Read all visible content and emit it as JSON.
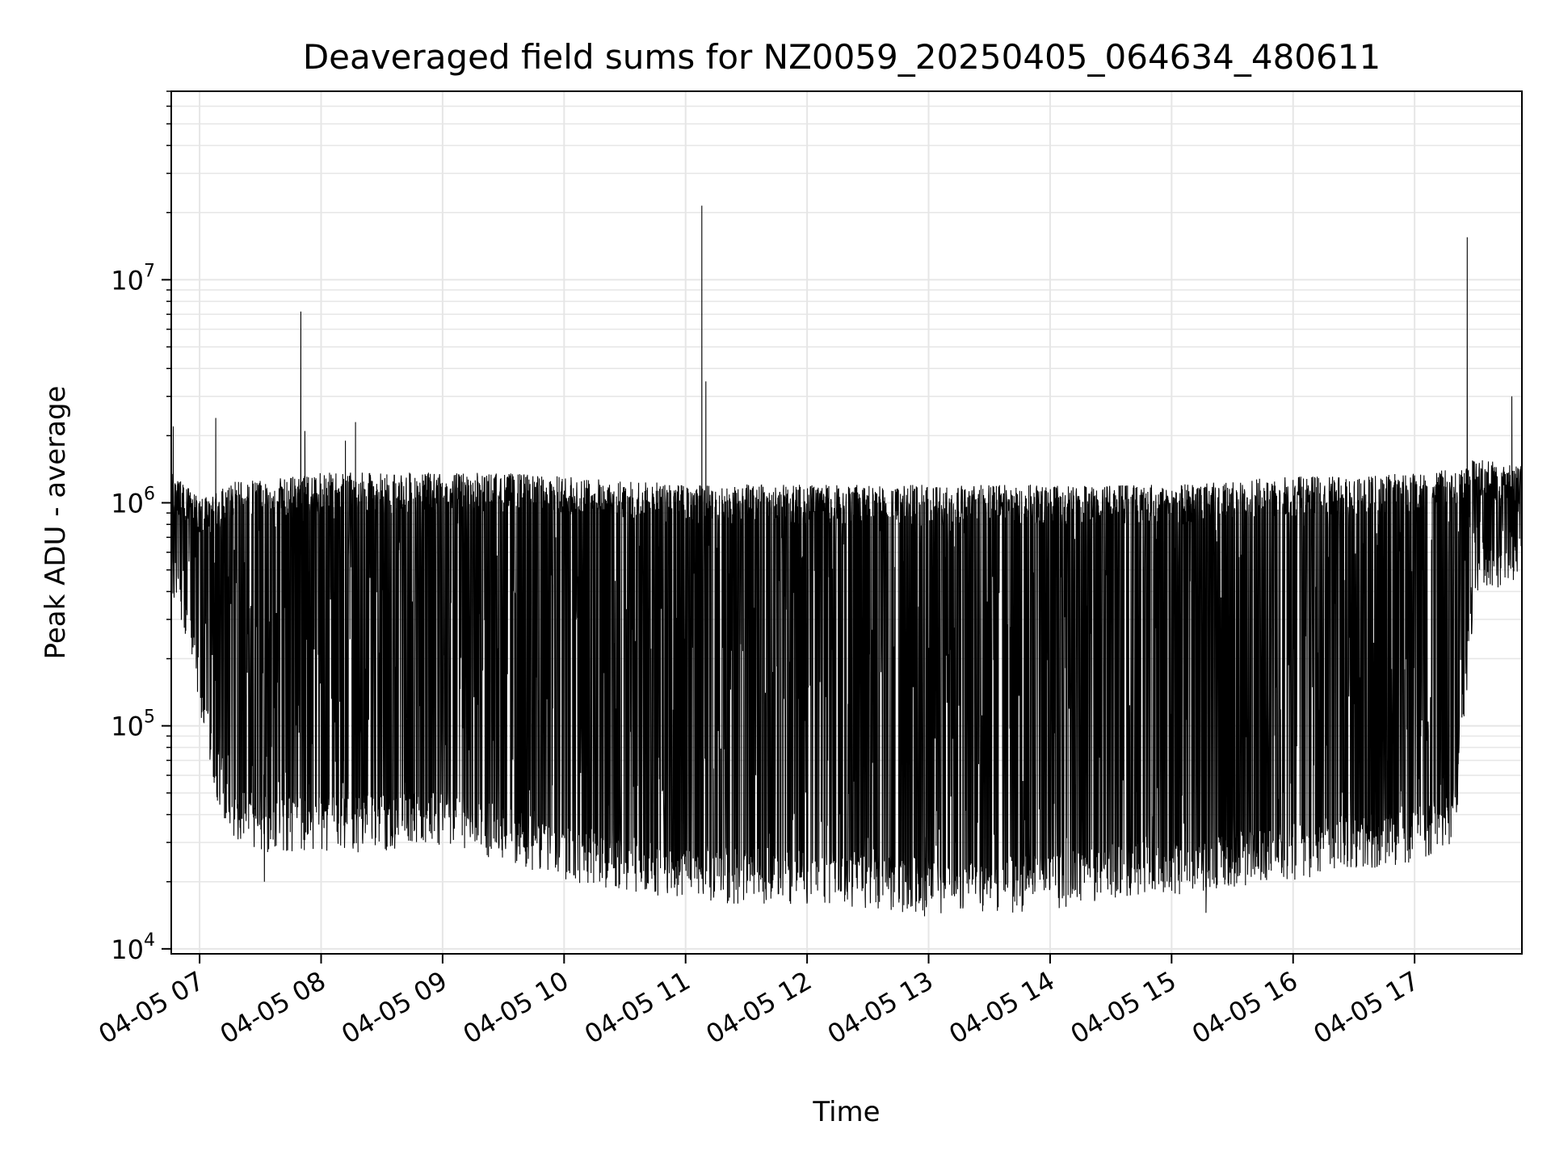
{
  "chart_data": {
    "type": "line",
    "title": "Deaveraged field sums for NZ0059_20250405_064634_480611",
    "xlabel": "Time",
    "ylabel": "Peak ADU - average",
    "yscale": "log",
    "ylim": [
      9500,
      70000000
    ],
    "xlim": [
      "2025-04-05 06:46",
      "2025-04-05 17:53"
    ],
    "grid": true,
    "x_ticks": [
      {
        "t": "2025-04-05 07:00",
        "label": "04-05 07"
      },
      {
        "t": "2025-04-05 08:00",
        "label": "04-05 08"
      },
      {
        "t": "2025-04-05 09:00",
        "label": "04-05 09"
      },
      {
        "t": "2025-04-05 10:00",
        "label": "04-05 10"
      },
      {
        "t": "2025-04-05 11:00",
        "label": "04-05 11"
      },
      {
        "t": "2025-04-05 12:00",
        "label": "04-05 12"
      },
      {
        "t": "2025-04-05 13:00",
        "label": "04-05 13"
      },
      {
        "t": "2025-04-05 14:00",
        "label": "04-05 14"
      },
      {
        "t": "2025-04-05 15:00",
        "label": "04-05 15"
      },
      {
        "t": "2025-04-05 16:00",
        "label": "04-05 16"
      },
      {
        "t": "2025-04-05 17:00",
        "label": "04-05 17"
      }
    ],
    "y_ticks": [
      {
        "value": 10000,
        "base": "10",
        "exp": "4"
      },
      {
        "value": 100000,
        "base": "10",
        "exp": "5"
      },
      {
        "value": 1000000,
        "base": "10",
        "exp": "6"
      },
      {
        "value": 10000000,
        "base": "10",
        "exp": "7"
      }
    ],
    "line_color": "#000000",
    "grid_color": "#e6e6e6",
    "envelope": {
      "description_times": [
        "2025-04-05 06:46",
        "2025-04-05 06:55",
        "2025-04-05 07:05",
        "2025-04-05 07:15",
        "2025-04-05 07:30",
        "2025-04-05 08:00",
        "2025-04-05 08:30",
        "2025-04-05 09:00",
        "2025-04-05 09:30",
        "2025-04-05 10:00",
        "2025-04-05 10:30",
        "2025-04-05 11:00",
        "2025-04-05 11:30",
        "2025-04-05 12:00",
        "2025-04-05 12:30",
        "2025-04-05 13:00",
        "2025-04-05 13:30",
        "2025-04-05 14:00",
        "2025-04-05 14:30",
        "2025-04-05 15:00",
        "2025-04-05 15:30",
        "2025-04-05 16:00",
        "2025-04-05 16:30",
        "2025-04-05 17:00",
        "2025-04-05 17:20",
        "2025-04-05 17:30",
        "2025-04-05 17:53"
      ],
      "upper": [
        1300000,
        1100000,
        1000000,
        1200000,
        1200000,
        1300000,
        1300000,
        1300000,
        1300000,
        1250000,
        1200000,
        1150000,
        1150000,
        1150000,
        1150000,
        1150000,
        1150000,
        1150000,
        1150000,
        1150000,
        1200000,
        1250000,
        1250000,
        1300000,
        1350000,
        1500000,
        1400000
      ],
      "lower": [
        500000,
        250000,
        80000,
        40000,
        36000,
        36000,
        36000,
        38000,
        33000,
        27000,
        24000,
        22000,
        21000,
        21000,
        20000,
        19000,
        19000,
        20000,
        22000,
        23000,
        25000,
        27000,
        30000,
        32000,
        40000,
        500000,
        600000
      ]
    },
    "spikes": [
      {
        "t": "2025-04-05 06:47",
        "value": 2200000
      },
      {
        "t": "2025-04-05 07:08",
        "value": 2400000
      },
      {
        "t": "2025-04-05 07:50",
        "value": 7200000
      },
      {
        "t": "2025-04-05 07:52",
        "value": 2100000
      },
      {
        "t": "2025-04-05 08:12",
        "value": 1900000
      },
      {
        "t": "2025-04-05 08:17",
        "value": 2300000
      },
      {
        "t": "2025-04-05 11:08",
        "value": 21500000
      },
      {
        "t": "2025-04-05 11:10",
        "value": 3500000
      },
      {
        "t": "2025-04-05 17:26",
        "value": 15500000
      },
      {
        "t": "2025-04-05 17:48",
        "value": 3000000
      },
      {
        "t": "2025-04-05 07:32",
        "value": 20000
      },
      {
        "t": "2025-04-05 12:58",
        "value": 14000
      },
      {
        "t": "2025-04-05 15:17",
        "value": 14500
      }
    ]
  }
}
